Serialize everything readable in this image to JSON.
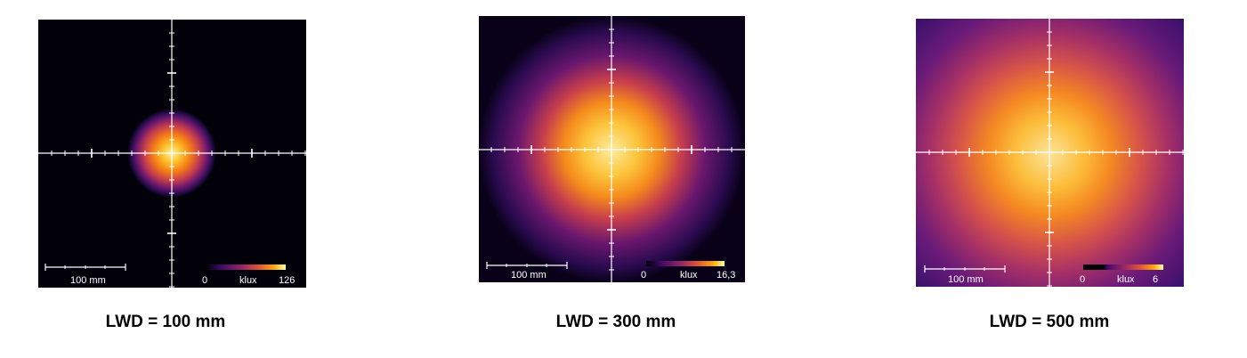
{
  "panels": [
    {
      "caption": "LWD = 100 mm",
      "scale_label": "100 mm",
      "colorbar": {
        "min_label": "0",
        "unit": "klux",
        "max_label": "126"
      }
    },
    {
      "caption": "LWD = 300 mm",
      "scale_label": "100 mm",
      "colorbar": {
        "min_label": "0",
        "unit": "klux",
        "max_label": "16,3"
      }
    },
    {
      "caption": "LWD = 500 mm",
      "scale_label": "100 mm",
      "colorbar": {
        "min_label": "0",
        "unit": "klux",
        "max_label": "6"
      }
    }
  ],
  "colors": {
    "background": "#020008",
    "inferno": [
      "#000004",
      "#420a68",
      "#932667",
      "#dd513a",
      "#fca50a",
      "#fcffa4"
    ]
  }
}
